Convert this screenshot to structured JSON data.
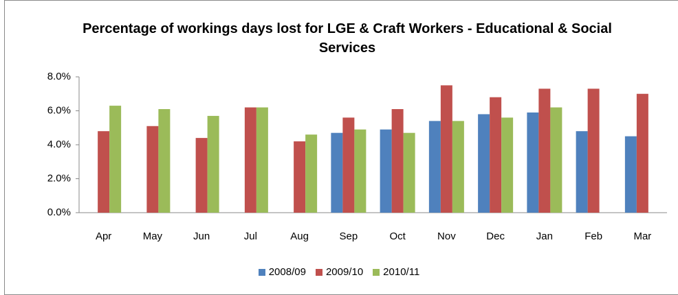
{
  "chart_data": {
    "type": "bar",
    "title": "Percentage of workings days lost for LGE & Craft Workers - Educational & Social Services",
    "categories": [
      "Apr",
      "May",
      "Jun",
      "Jul",
      "Aug",
      "Sep",
      "Oct",
      "Nov",
      "Dec",
      "Jan",
      "Feb",
      "Mar"
    ],
    "series": [
      {
        "name": "2008/09",
        "color": "#4f81bd",
        "values": [
          null,
          null,
          null,
          null,
          null,
          4.7,
          4.9,
          5.4,
          5.8,
          5.9,
          4.8,
          4.5
        ]
      },
      {
        "name": "2009/10",
        "color": "#c0504d",
        "values": [
          4.8,
          5.1,
          4.4,
          6.2,
          4.2,
          5.6,
          6.1,
          7.5,
          6.8,
          7.3,
          7.3,
          7.0
        ]
      },
      {
        "name": "2010/11",
        "color": "#9bbb59",
        "values": [
          6.3,
          6.1,
          5.7,
          6.2,
          4.6,
          4.9,
          4.7,
          5.4,
          5.6,
          6.2,
          null,
          null
        ]
      }
    ],
    "ylim": [
      0,
      8
    ],
    "yticks": [
      {
        "value": 0,
        "label": "0.0%"
      },
      {
        "value": 2,
        "label": "2.0%"
      },
      {
        "value": 4,
        "label": "4.0%"
      },
      {
        "value": 6,
        "label": "6.0%"
      },
      {
        "value": 8,
        "label": "8.0%"
      }
    ],
    "grid": false,
    "legend": "bottom"
  }
}
